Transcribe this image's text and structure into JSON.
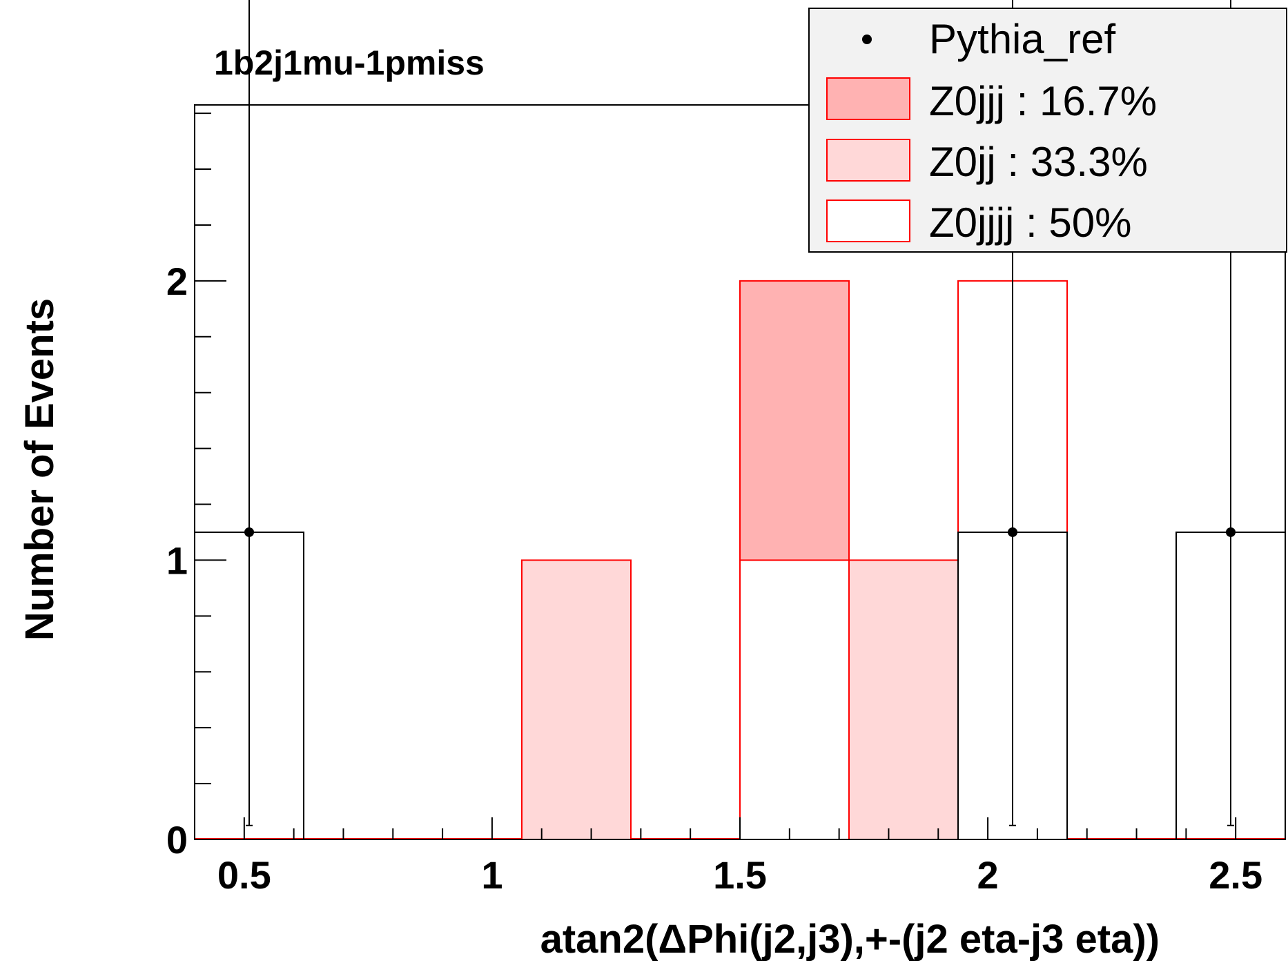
{
  "chart_data": {
    "type": "bar",
    "title": "1b2j1mu-1pmiss",
    "xlabel": "atan2(ΔPhi(j2,j3),+-(j2 eta-j3 eta))",
    "ylabel": "Number of Events",
    "xlim": [
      0.4,
      2.6
    ],
    "ylim": [
      0,
      2.63
    ],
    "xticks": [
      0.5,
      1,
      1.5,
      2,
      2.5
    ],
    "xtick_labels": [
      "0.5",
      "1",
      "1.5",
      "2",
      "2.5"
    ],
    "yticks": [
      0,
      1,
      2
    ],
    "ytick_labels": [
      "0",
      "1",
      "2"
    ],
    "bin_edges": [
      0.4,
      0.62,
      0.84,
      1.06,
      1.28,
      1.5,
      1.72,
      1.94,
      2.16,
      2.38,
      2.6
    ],
    "stack": [
      {
        "name": "Z0jjjj : 50%",
        "values": [
          0,
          0,
          0,
          0,
          0,
          1,
          0,
          2,
          0,
          0
        ],
        "fill": "#ffffff",
        "stroke": "#ff0000"
      },
      {
        "name": "Z0jj : 33.3%",
        "values": [
          0,
          0,
          0,
          1,
          0,
          0,
          1,
          0,
          0,
          0
        ],
        "fill": "#ffd8d8",
        "stroke": "#ff0000"
      },
      {
        "name": "Z0jjj : 16.7%",
        "values": [
          0,
          0,
          0,
          0,
          0,
          1,
          0,
          0,
          0,
          0
        ],
        "fill": "#ffb2b2",
        "stroke": "#ff0000"
      }
    ],
    "reference": {
      "name": "Pythia_ref",
      "points": [
        {
          "x": 0.51,
          "y": 1.1,
          "err_low": 1.05,
          "err_high": 2.15
        },
        {
          "x": 2.05,
          "y": 1.1,
          "err_low": 1.05,
          "err_high": 2.15
        },
        {
          "x": 2.49,
          "y": 1.1,
          "err_low": 1.05,
          "err_high": 2.15
        }
      ],
      "hist_bins": [
        {
          "x0": 0.4,
          "x1": 0.62,
          "y": 1.1
        },
        {
          "x0": 1.94,
          "x1": 2.16,
          "y": 1.1
        },
        {
          "x0": 2.38,
          "x1": 2.6,
          "y": 1.1
        }
      ],
      "color": "#000000"
    },
    "legend": {
      "position": "top-right",
      "entries": [
        {
          "label": "Pythia_ref",
          "style": "marker"
        },
        {
          "label": "Z0jjj : 16.7%",
          "style": "fill",
          "fill": "#ffb2b2"
        },
        {
          "label": "Z0jj : 33.3%",
          "style": "fill",
          "fill": "#ffd8d8"
        },
        {
          "label": "Z0jjjj : 50%",
          "style": "fill",
          "fill": "#ffffff"
        }
      ]
    }
  }
}
